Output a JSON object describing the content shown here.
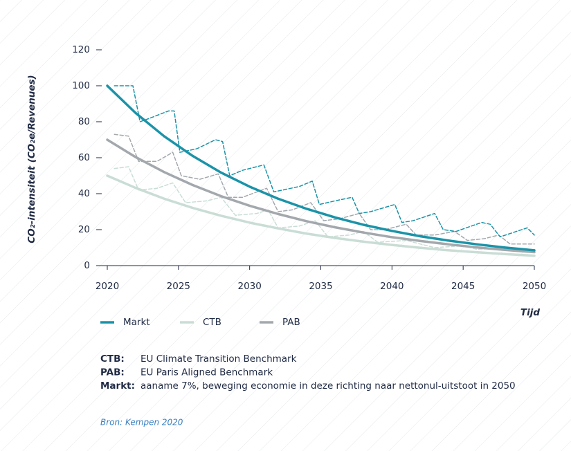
{
  "chart_data": {
    "type": "line",
    "y_label": "CO₂-intensiteit (CO₂e/Revenues)",
    "x_label": "Tijd",
    "xlim": [
      2020,
      2050
    ],
    "xticks": [
      2020,
      2025,
      2030,
      2035,
      2040,
      2045,
      2050
    ],
    "ylim": [
      0,
      120
    ],
    "yticks": [
      0,
      20,
      40,
      60,
      80,
      100,
      120
    ],
    "series": [
      {
        "name": "Markt",
        "color": "#1a93a8",
        "x": [
          2020,
          2022,
          2024,
          2026,
          2028,
          2030,
          2032,
          2034,
          2036,
          2038,
          2040,
          2042,
          2044,
          2046,
          2048,
          2050
        ],
        "values": [
          100,
          84.8,
          71.9,
          61.0,
          51.7,
          43.9,
          37.2,
          31.6,
          26.8,
          22.7,
          19.3,
          16.3,
          13.9,
          11.8,
          10.0,
          8.5
        ]
      },
      {
        "name": "CTB",
        "color": "#c9ddd5",
        "x": [
          2020,
          2022,
          2024,
          2026,
          2028,
          2030,
          2032,
          2034,
          2036,
          2038,
          2040,
          2042,
          2044,
          2046,
          2048,
          2050
        ],
        "values": [
          50,
          43.2,
          37.2,
          32.1,
          27.7,
          23.9,
          20.7,
          17.8,
          15.4,
          13.3,
          11.5,
          9.9,
          8.5,
          7.4,
          6.4,
          5.5
        ]
      },
      {
        "name": "PAB",
        "color": "#a3a8ad",
        "x": [
          2020,
          2022,
          2024,
          2026,
          2028,
          2030,
          2032,
          2034,
          2036,
          2038,
          2040,
          2042,
          2044,
          2046,
          2048,
          2050
        ],
        "values": [
          70,
          60.3,
          52.0,
          44.8,
          38.6,
          33.3,
          28.7,
          24.7,
          21.3,
          18.4,
          15.8,
          13.7,
          11.8,
          10.1,
          8.7,
          7.5
        ]
      },
      {
        "color": "#c9ddd5",
        "dashed": true,
        "x": [
          2020.5,
          2021.5,
          2022.2,
          2023.5,
          2024.6,
          2025.5,
          2027,
          2028,
          2029,
          2030.5,
          2031.3,
          2032,
          2033.5,
          2034.6,
          2035.5,
          2037,
          2038,
          2039,
          2041,
          2042,
          2043,
          2045,
          2046,
          2048,
          2050
        ],
        "values": [
          54,
          55,
          42,
          43,
          46,
          35,
          36,
          38,
          28,
          29,
          31,
          21,
          22,
          25,
          16,
          17,
          19,
          13,
          14,
          12,
          10,
          11,
          9,
          10,
          9
        ]
      },
      {
        "color": "#a3a8ad",
        "dashed": true,
        "x": [
          2020.5,
          2021.5,
          2022.2,
          2023.5,
          2024.6,
          2025.2,
          2026.5,
          2027.8,
          2028.5,
          2029.5,
          2031.2,
          2032,
          2033,
          2034.3,
          2035.2,
          2036.3,
          2037.7,
          2038.5,
          2039.5,
          2041,
          2041.7,
          2043,
          2044.4,
          2045.3,
          2046.5,
          2047.5,
          2048.3,
          2050
        ],
        "values": [
          73,
          72,
          58,
          58,
          63,
          50,
          48,
          51,
          38,
          38,
          43,
          30,
          31,
          35,
          25,
          26,
          29,
          20,
          20,
          23,
          17,
          17,
          19,
          14,
          15,
          17,
          12,
          12
        ]
      },
      {
        "color": "#1a93a8",
        "dashed": true,
        "x": [
          2020.5,
          2021.8,
          2022.3,
          2023,
          2024.3,
          2024.7,
          2025.1,
          2026.3,
          2027.6,
          2028.1,
          2028.6,
          2029.5,
          2031,
          2031.7,
          2032.3,
          2033.5,
          2034.4,
          2034.9,
          2036,
          2037.2,
          2037.7,
          2038.5,
          2040.2,
          2040.7,
          2041.5,
          2043,
          2043.6,
          2044.5,
          2046.3,
          2046.9,
          2047.6,
          2049.5,
          2050
        ],
        "values": [
          100,
          100,
          80,
          82,
          86,
          86,
          63,
          65,
          70,
          69,
          50,
          53,
          56,
          41,
          42,
          44,
          47,
          34,
          36,
          38,
          29,
          30,
          34,
          24,
          25,
          29,
          20,
          19,
          24,
          23,
          16,
          21,
          17
        ]
      }
    ],
    "notes": [
      {
        "label": "CTB:",
        "text": "EU Climate Transition Benchmark"
      },
      {
        "label": "PAB:",
        "text": "EU Paris Aligned Benchmark"
      },
      {
        "label": "Markt:",
        "text": "aaname 7%, beweging economie in deze richting naar nettonul-uitstoot in 2050"
      }
    ],
    "source": "Bron: Kempen 2020"
  }
}
